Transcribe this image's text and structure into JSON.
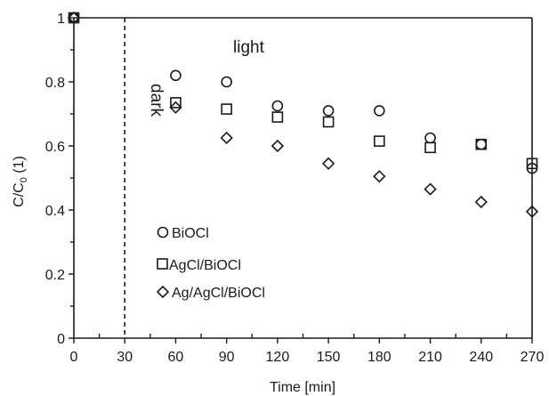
{
  "chart_data": {
    "type": "scatter",
    "title": "",
    "xlabel": "Time [min]",
    "ylabel": {
      "main": "C/C",
      "sub": "0",
      "unit": " (1)"
    },
    "xlim": [
      0,
      270
    ],
    "ylim": [
      0,
      1
    ],
    "xticks": [
      0,
      30,
      60,
      90,
      120,
      150,
      180,
      210,
      240,
      270
    ],
    "yticks": [
      0,
      0.2,
      0.4,
      0.6,
      0.8,
      1
    ],
    "ytick_labels": [
      "0",
      "0.2",
      "0.4",
      "0.6",
      "0.8",
      "1"
    ],
    "grid": false,
    "legend_position": "lower-left",
    "annotations": {
      "dark_light_boundary_x": 30,
      "dark_label": "dark",
      "light_label": "light"
    },
    "series": [
      {
        "name": "BiOCl",
        "marker": "circle",
        "x": [
          0,
          60,
          90,
          120,
          150,
          180,
          210,
          240,
          270
        ],
        "y": [
          1.0,
          0.82,
          0.8,
          0.725,
          0.71,
          0.71,
          0.625,
          0.605,
          0.53
        ]
      },
      {
        "name": "AgCl/BiOCl",
        "marker": "square",
        "x": [
          0,
          60,
          90,
          120,
          150,
          180,
          210,
          240,
          270
        ],
        "y": [
          1.0,
          0.735,
          0.715,
          0.69,
          0.675,
          0.615,
          0.595,
          0.605,
          0.545
        ]
      },
      {
        "name": "Ag/AgCl/BiOCl",
        "marker": "diamond",
        "x": [
          0,
          60,
          90,
          120,
          150,
          180,
          210,
          240,
          270
        ],
        "y": [
          1.0,
          0.72,
          0.625,
          0.6,
          0.545,
          0.505,
          0.465,
          0.425,
          0.395
        ]
      }
    ],
    "colors": {
      "marker_stroke": "#1a1a1a",
      "axis": "#1a1a1a"
    }
  }
}
